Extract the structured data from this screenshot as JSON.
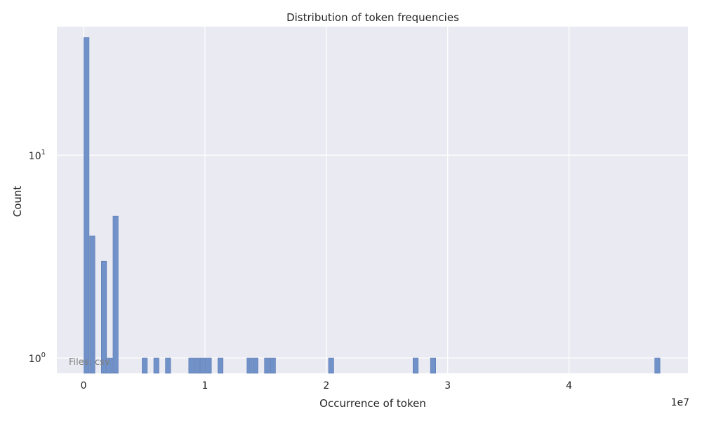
{
  "chart_data": {
    "type": "bar",
    "title": "Distribution of token frequencies",
    "xlabel": "Occurrence of token",
    "ylabel": "Count",
    "x_offset_label": "1e7",
    "annotation": "Files: csv",
    "yscale": "log",
    "xlim": [
      -2200000,
      49800000
    ],
    "ylim": [
      0.84,
      43
    ],
    "x_ticks": [
      {
        "value": 0,
        "label": "0"
      },
      {
        "value": 10000000,
        "label": "1"
      },
      {
        "value": 20000000,
        "label": "2"
      },
      {
        "value": 30000000,
        "label": "3"
      },
      {
        "value": 40000000,
        "label": "4"
      }
    ],
    "y_ticks": [
      {
        "value": 1,
        "base": "10",
        "exp": "0"
      },
      {
        "value": 10,
        "base": "10",
        "exp": "1"
      }
    ],
    "bin_width": 480000,
    "bars": [
      {
        "x": 240000,
        "count": 38
      },
      {
        "x": 720000,
        "count": 4
      },
      {
        "x": 1680000,
        "count": 3
      },
      {
        "x": 2160000,
        "count": 1
      },
      {
        "x": 2640000,
        "count": 5
      },
      {
        "x": 5040000,
        "count": 1
      },
      {
        "x": 6000000,
        "count": 1
      },
      {
        "x": 6960000,
        "count": 1
      },
      {
        "x": 8880000,
        "count": 1
      },
      {
        "x": 9360000,
        "count": 1
      },
      {
        "x": 9840000,
        "count": 1
      },
      {
        "x": 10320000,
        "count": 1
      },
      {
        "x": 11280000,
        "count": 1
      },
      {
        "x": 13680000,
        "count": 1
      },
      {
        "x": 14160000,
        "count": 1
      },
      {
        "x": 15120000,
        "count": 1
      },
      {
        "x": 15600000,
        "count": 1
      },
      {
        "x": 20400000,
        "count": 1
      },
      {
        "x": 27360000,
        "count": 1
      },
      {
        "x": 28800000,
        "count": 1
      },
      {
        "x": 47280000,
        "count": 1
      }
    ],
    "colors": {
      "background": "#eaeaf2",
      "grid": "#ffffff",
      "bar_fill": "#7191c9",
      "bar_edge": "#5a7ab3"
    }
  }
}
